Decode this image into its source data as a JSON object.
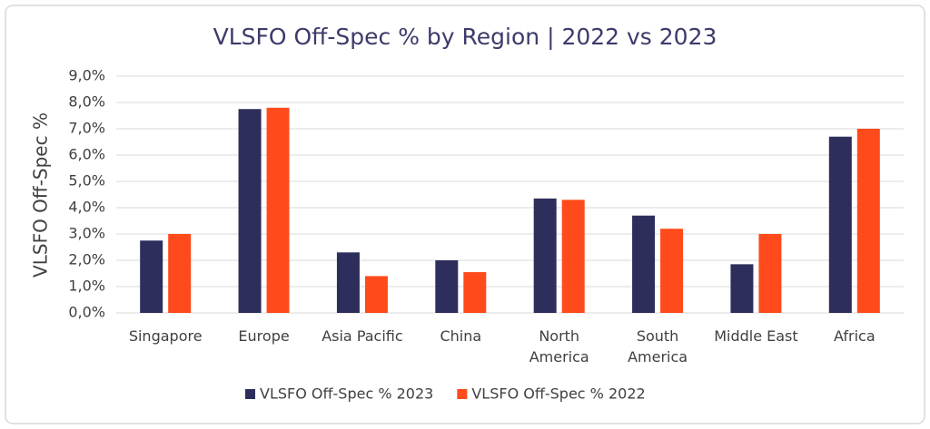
{
  "chart_data": {
    "type": "bar",
    "title": "VLSFO Off-Spec % by Region | 2022 vs 2023",
    "y_label": "VLSFO Off-Spec %",
    "categories": [
      "Singapore",
      "Europe",
      "Asia Pacific",
      "China",
      "North America",
      "South America",
      "Middle East",
      "Africa"
    ],
    "series": [
      {
        "name": "VLSFO Off-Spec % 2023",
        "color": "#2e2e5c",
        "values": [
          2.75,
          7.75,
          2.3,
          2.0,
          4.35,
          3.7,
          1.85,
          6.7
        ]
      },
      {
        "name": "VLSFO Off-Spec % 2022",
        "color": "#ff4a1c",
        "values": [
          3.0,
          7.8,
          1.4,
          1.55,
          4.3,
          3.2,
          3.0,
          7.0
        ]
      }
    ],
    "ylim": [
      0,
      9
    ],
    "yticks": [
      {
        "value": 0,
        "label": "0,0%"
      },
      {
        "value": 1,
        "label": "1,0%"
      },
      {
        "value": 2,
        "label": "2,0%"
      },
      {
        "value": 3,
        "label": "3,0%"
      },
      {
        "value": 4,
        "label": "4,0%"
      },
      {
        "value": 5,
        "label": "5,0%"
      },
      {
        "value": 6,
        "label": "6,0%"
      },
      {
        "value": 7,
        "label": "7,0%"
      },
      {
        "value": 8,
        "label": "8,0%"
      },
      {
        "value": 9,
        "label": "9,0%"
      }
    ],
    "grid": true,
    "legend": "bottom"
  }
}
